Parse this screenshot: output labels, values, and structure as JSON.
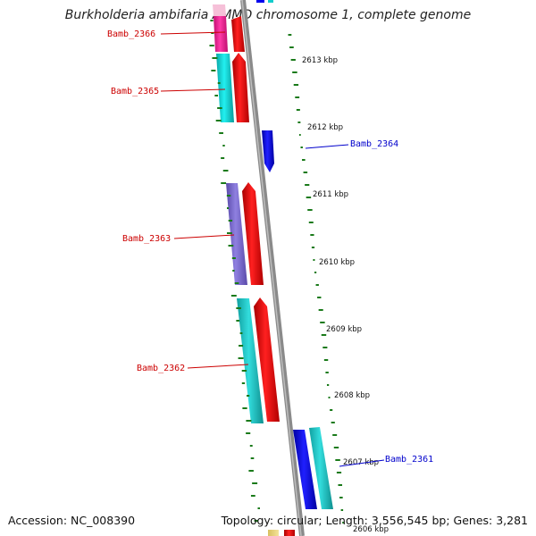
{
  "title": "Burkholderia ambifaria AMMD chromosome 1, complete genome",
  "footer": {
    "accession": "Accession: NC_008390",
    "topology": "Topology: circular; Length: 3,556,545 bp; Genes: 3,281"
  },
  "ticks": [
    "2613 kbp",
    "2612 kbp",
    "2611 kbp",
    "2610 kbp",
    "2609 kbp",
    "2608 kbp",
    "2607 kbp",
    "2606 kbp"
  ],
  "genes": [
    {
      "name": "Bamb_2366",
      "strand": "reverse",
      "color": "#cc0000"
    },
    {
      "name": "Bamb_2365",
      "strand": "reverse",
      "color": "#cc0000"
    },
    {
      "name": "Bamb_2364",
      "strand": "forward",
      "color": "#0000cc"
    },
    {
      "name": "Bamb_2363",
      "strand": "reverse",
      "color": "#cc0000"
    },
    {
      "name": "Bamb_2362",
      "strand": "reverse",
      "color": "#cc0000"
    },
    {
      "name": "Bamb_2361",
      "strand": "forward",
      "color": "#0000cc"
    }
  ],
  "colors": {
    "backbone": "#8a8a8a",
    "cds": "#ee0000",
    "forward_gene": "#0000ee",
    "cyan": "#11cccc",
    "magenta": "#ee1188",
    "purple": "#7766cc",
    "gc_tick": "#1a7a1a"
  }
}
